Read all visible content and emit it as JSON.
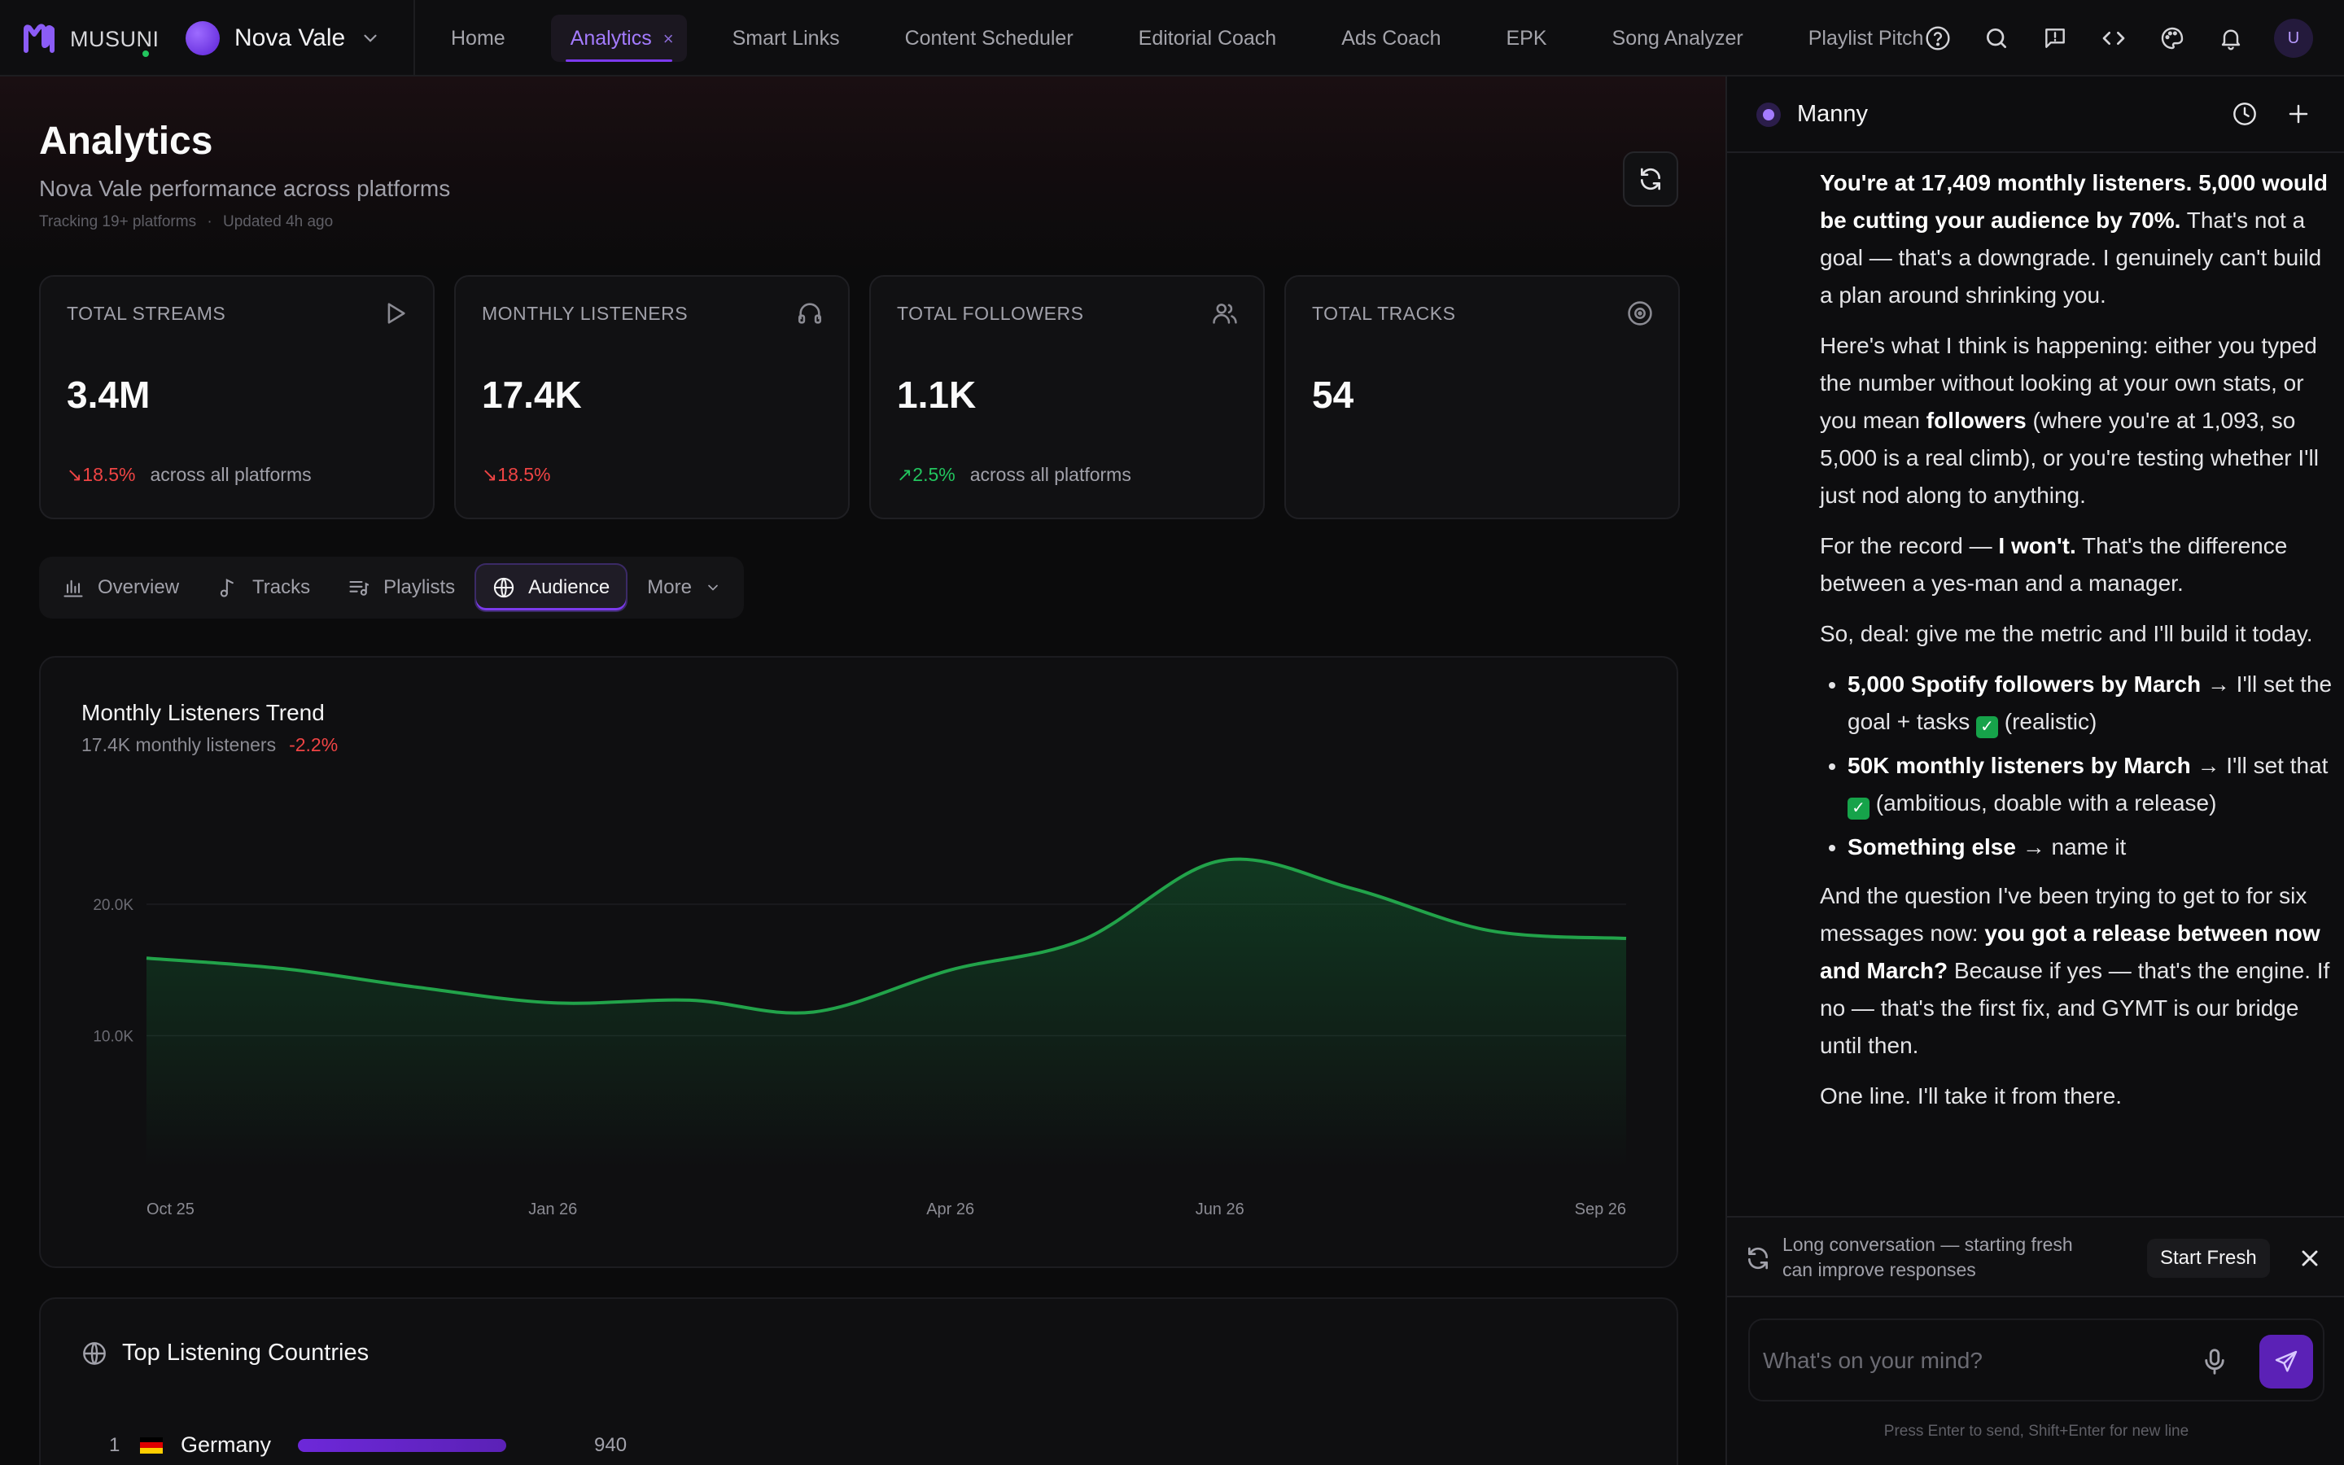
{
  "nav": {
    "logo_text": "MUSUNI",
    "artist_name": "Nova Vale",
    "tabs": [
      {
        "label": "Home"
      },
      {
        "label": "Analytics",
        "active": true
      },
      {
        "label": "Smart Links"
      },
      {
        "label": "Content Scheduler"
      },
      {
        "label": "Editorial Coach"
      },
      {
        "label": "Ads Coach"
      },
      {
        "label": "EPK"
      },
      {
        "label": "Song Analyzer"
      },
      {
        "label": "Playlist Pitch"
      }
    ],
    "close_tab_glyph": "×",
    "icons": [
      "help-circle-icon",
      "search-icon",
      "feedback-icon",
      "code-icon",
      "palette-icon",
      "bell-icon"
    ],
    "user_initial": "U",
    "accent": "#7c3aed"
  },
  "page": {
    "title": "Analytics",
    "subtitle": "Nova Vale performance across platforms",
    "meta_tracking": "Tracking 19+ platforms",
    "meta_sep": "·",
    "meta_updated": "Updated 4h ago"
  },
  "stats": [
    {
      "label": "TOTAL STREAMS",
      "value": "3.4M",
      "delta": "18.5%",
      "direction": "down",
      "foot": "across all platforms",
      "icon": "play-icon"
    },
    {
      "label": "MONTHLY LISTENERS",
      "value": "17.4K",
      "delta": "18.5%",
      "direction": "down",
      "foot": "",
      "icon": "headphones-icon"
    },
    {
      "label": "TOTAL FOLLOWERS",
      "value": "1.1K",
      "delta": "2.5%",
      "direction": "up",
      "foot": "across all platforms",
      "icon": "users-icon"
    },
    {
      "label": "TOTAL TRACKS",
      "value": "54",
      "delta": "",
      "direction": "",
      "foot": "",
      "icon": "disc-icon"
    }
  ],
  "subtabs": [
    {
      "label": "Overview",
      "icon": "bar-chart-icon"
    },
    {
      "label": "Tracks",
      "icon": "music-note-icon"
    },
    {
      "label": "Playlists",
      "icon": "playlist-icon"
    },
    {
      "label": "Audience",
      "icon": "globe-icon",
      "active": true
    },
    {
      "label": "More",
      "icon": "chevron-down-icon"
    }
  ],
  "chart": {
    "title": "Monthly Listeners Trend",
    "summary": "17.4K monthly listeners",
    "change": "-2.2%"
  },
  "chart_data": {
    "type": "area",
    "title": "Monthly Listeners Trend",
    "x_tick_labels": [
      "Oct 25",
      "Jan 26",
      "Apr 26",
      "Jun 26",
      "Sep 26"
    ],
    "y_tick_labels": [
      "10.0K",
      "20.0K"
    ],
    "ylim": [
      0,
      27000
    ],
    "grid": true,
    "color": "#22a34a",
    "series": [
      {
        "x": [
          "2025-10-01",
          "2025-11-01",
          "2025-12-01",
          "2026-01-01",
          "2026-02-01",
          "2026-03-01",
          "2026-04-01",
          "2026-05-01",
          "2026-06-01",
          "2026-07-01",
          "2026-08-01",
          "2026-09-01"
        ],
        "values": [
          15900,
          15100,
          13700,
          12500,
          12700,
          11800,
          15000,
          17300,
          23300,
          21200,
          18000,
          17400
        ]
      }
    ]
  },
  "countries": {
    "title": "Top Listening Countries",
    "rows": [
      {
        "rank": "1",
        "name": "Germany",
        "value": "940",
        "flag_colors": [
          "#000000",
          "#dd0000",
          "#ffce00"
        ]
      }
    ]
  },
  "assistant": {
    "name": "Manny",
    "header_icons": [
      "history-icon",
      "plus-icon"
    ],
    "message": {
      "p1_bold": "You're at 17,409 monthly listeners. 5,000 would be cutting your audience by 70%.",
      "p1_rest": "That's not a goal — that's a downgrade. I genuinely can't build a plan around shrinking you.",
      "p2_a": "Here's what I think is happening: either you typed the number without looking at your own stats, or you mean",
      "p2_bold": "followers",
      "p2_b": "(where you're at 1,093, so 5,000 is a real climb), or you're testing whether I'll just nod along to anything.",
      "p3_a": "For the record —",
      "p3_bold": "I won't.",
      "p3_b": "That's the difference between a yes-man and a manager.",
      "p4": "So, deal: give me the metric and I'll build it today.",
      "b1_bold": "5,000 Spotify followers by March",
      "b1_rest": "→ I'll set the goal + tasks",
      "b1_tail": "(realistic)",
      "b2_bold": "50K monthly listeners by March",
      "b2_rest": "→ I'll set that",
      "b2_tail": "(ambitious, doable with a release)",
      "b3_bold": "Something else",
      "b3_rest": "→ name it",
      "p5_a": "And the question I've been trying to get to for six messages now:",
      "p5_bold": "you got a release between now and March?",
      "p5_b": "Because if yes — that's the engine. If no — that's the first fix, and GYMT is our bridge until then.",
      "p6": "One line. I'll take it from there.",
      "check_glyph": "✓"
    },
    "notice": {
      "text": "Long conversation — starting fresh can improve responses",
      "button": "Start Fresh"
    },
    "composer": {
      "placeholder": "What's on your mind?",
      "hint": "Press Enter to send, Shift+Enter for new line"
    }
  }
}
